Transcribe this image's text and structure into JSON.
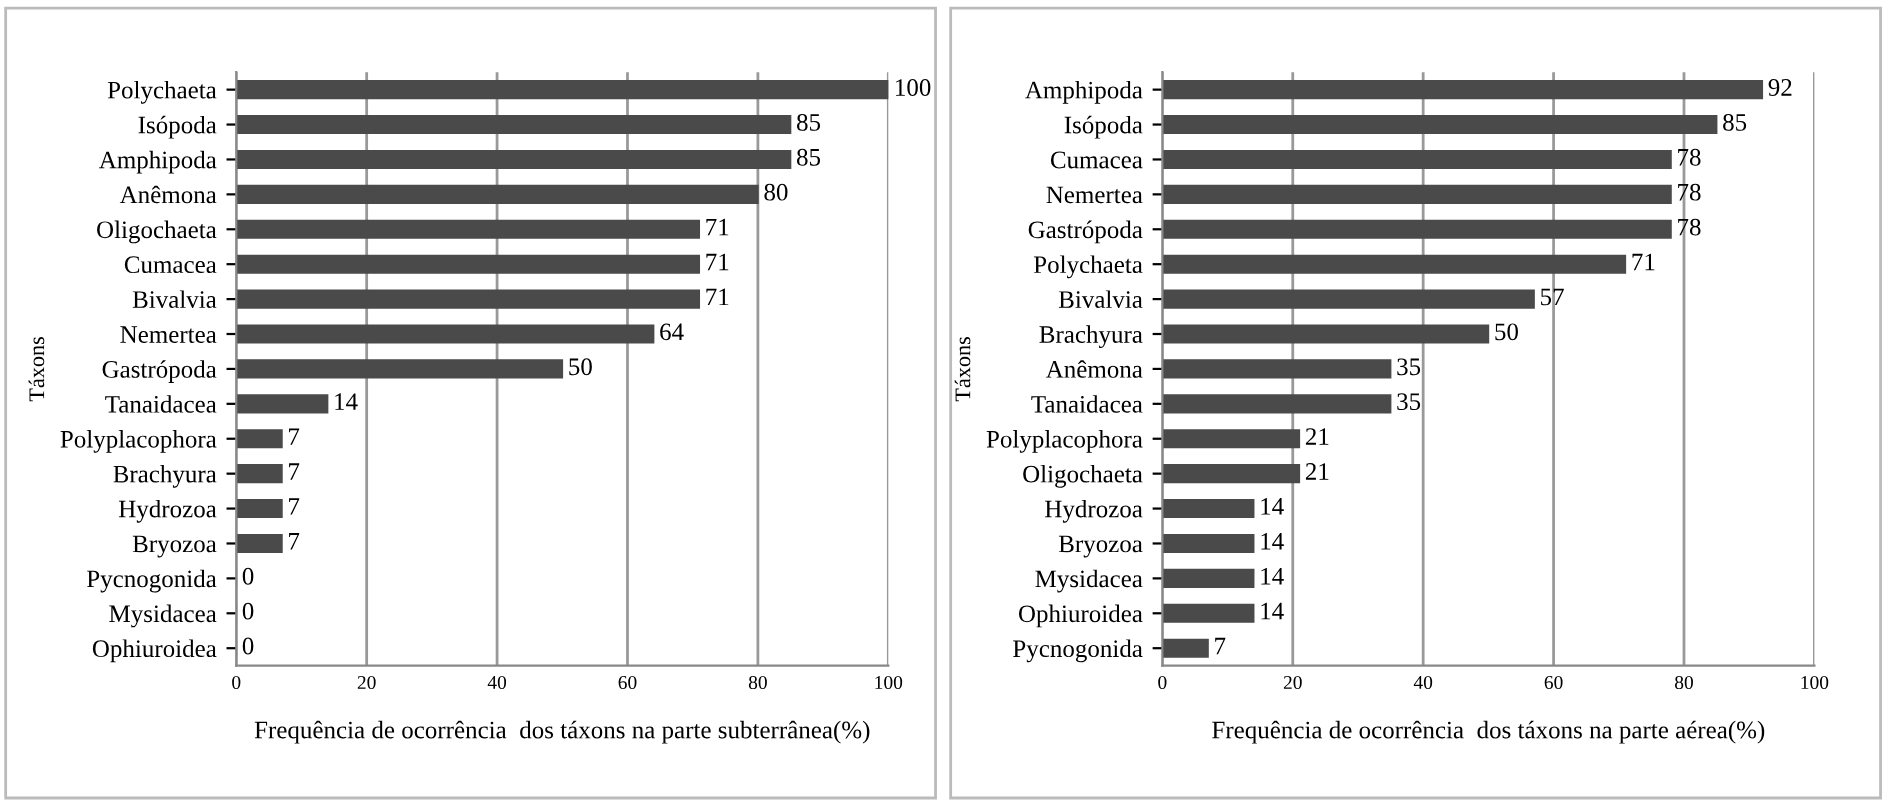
{
  "chart_data": [
    {
      "type": "bar",
      "orientation": "horizontal",
      "ylabel": "Táxons",
      "xlabel": "Frequência de ocorrência  dos táxons na parte subterrânea(%)",
      "categories": [
        "Polychaeta",
        "Isópoda",
        "Amphipoda",
        "Anêmona",
        "Oligochaeta",
        "Cumacea",
        "Bivalvia",
        "Nemertea",
        "Gastrópoda",
        "Tanaidacea",
        "Polyplacophora",
        "Brachyura",
        "Hydrozoa",
        "Bryozoa",
        "Pycnogonida",
        "Mysidacea",
        "Ophiuroidea"
      ],
      "values": [
        100,
        85,
        85,
        80,
        71,
        71,
        71,
        64,
        50,
        14,
        7,
        7,
        7,
        7,
        0,
        0,
        0
      ],
      "color": "#4a4a4a",
      "xlim": [
        0,
        100
      ],
      "xticks": [
        0,
        20,
        40,
        60,
        80,
        100
      ],
      "grid": "x",
      "data_labels": true
    },
    {
      "type": "bar",
      "orientation": "horizontal",
      "ylabel": "Táxons",
      "xlabel": "Frequência de ocorrência  dos táxons na parte aérea(%)",
      "categories": [
        "Amphipoda",
        "Isópoda",
        "Cumacea",
        "Nemertea",
        "Gastrópoda",
        "Polychaeta",
        "Bivalvia",
        "Brachyura",
        "Anêmona",
        "Tanaidacea",
        "Polyplacophora",
        "Oligochaeta",
        "Hydrozoa",
        "Bryozoa",
        "Mysidacea",
        "Ophiuroidea",
        "Pycnogonida"
      ],
      "values": [
        92,
        85,
        78,
        78,
        78,
        71,
        57,
        50,
        35,
        35,
        21,
        21,
        14,
        14,
        14,
        14,
        7
      ],
      "color": "#4a4a4a",
      "xlim": [
        0,
        100
      ],
      "xticks": [
        0,
        20,
        40,
        60,
        80,
        100
      ],
      "grid": "x",
      "data_labels": true
    }
  ]
}
